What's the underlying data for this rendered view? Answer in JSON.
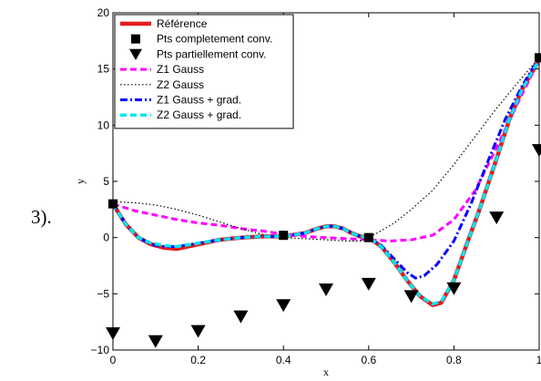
{
  "prefix": "3).",
  "chart_data": {
    "type": "line",
    "title": "",
    "xlabel": "x",
    "ylabel": "y",
    "xlim": [
      0,
      1
    ],
    "ylim": [
      -10,
      20
    ],
    "xticks": [
      "0",
      "0.2",
      "0.4",
      "0.6",
      "0.8",
      "1"
    ],
    "yticks": [
      "−10",
      "−5",
      "0",
      "5",
      "10",
      "15",
      "20"
    ],
    "xtick_values": [
      0,
      0.2,
      0.4,
      0.6,
      0.8,
      1
    ],
    "ytick_values": [
      -10,
      -5,
      0,
      5,
      10,
      15,
      20
    ],
    "grid": false,
    "legend_position": "top-left",
    "series": [
      {
        "name": "Référence",
        "style": "line-thick",
        "color": "#e41a1c",
        "x": [
          0,
          0.03,
          0.06,
          0.09,
          0.12,
          0.15,
          0.2,
          0.25,
          0.3,
          0.35,
          0.4,
          0.45,
          0.48,
          0.5,
          0.52,
          0.54,
          0.56,
          0.58,
          0.6,
          0.63,
          0.66,
          0.69,
          0.72,
          0.75,
          0.77,
          0.8,
          0.83,
          0.86,
          0.9,
          0.93,
          0.96,
          1
        ],
        "y": [
          3,
          1.2,
          0,
          -0.6,
          -0.9,
          -1.0,
          -0.6,
          -0.2,
          0,
          0.1,
          0.1,
          0.4,
          0.8,
          1.0,
          1.0,
          0.8,
          0.4,
          0.1,
          0,
          -0.8,
          -2.2,
          -3.8,
          -5.2,
          -6.0,
          -5.8,
          -3.8,
          -0.6,
          2.5,
          7,
          10.5,
          13.2,
          15.8
        ]
      },
      {
        "name": "Pts completement conv.",
        "style": "square-marker",
        "color": "#000000",
        "x": [
          0,
          0.4,
          0.6,
          1
        ],
        "y": [
          3,
          0.2,
          0,
          16
        ]
      },
      {
        "name": "Pts partiellement conv.",
        "style": "triangle-marker",
        "color": "#000000",
        "x": [
          0,
          0.1,
          0.2,
          0.3,
          0.4,
          0.5,
          0.6,
          0.7,
          0.8,
          0.9,
          1
        ],
        "y": [
          -8.5,
          -9.2,
          -8.3,
          -7,
          -6,
          -4.6,
          -4.1,
          -5.2,
          -4.5,
          1.8,
          7.8
        ]
      },
      {
        "name": "Z1 Gauss",
        "style": "dashed",
        "color": "#ff00ff",
        "x": [
          0,
          0.05,
          0.1,
          0.15,
          0.2,
          0.25,
          0.3,
          0.35,
          0.4,
          0.45,
          0.5,
          0.55,
          0.6,
          0.65,
          0.7,
          0.75,
          0.8,
          0.85,
          0.9,
          0.95,
          1
        ],
        "y": [
          3,
          2.4,
          2.0,
          1.6,
          1.3,
          1.1,
          0.8,
          0.6,
          0.3,
          0.1,
          0,
          -0.1,
          -0.2,
          -0.3,
          -0.2,
          0.2,
          1.6,
          4.2,
          8.0,
          12.0,
          15.8
        ]
      },
      {
        "name": "Z2 Gauss",
        "style": "dotted",
        "color": "#000000",
        "x": [
          0,
          0.05,
          0.1,
          0.15,
          0.2,
          0.25,
          0.3,
          0.35,
          0.4,
          0.45,
          0.5,
          0.55,
          0.58,
          0.62,
          0.66,
          0.7,
          0.75,
          0.8,
          0.85,
          0.9,
          0.95,
          1
        ],
        "y": [
          3.2,
          3.1,
          2.9,
          2.5,
          2.0,
          1.4,
          0.8,
          0.3,
          0,
          -0.1,
          -0.2,
          -0.3,
          -0.3,
          0.4,
          1.3,
          2.5,
          4.2,
          6.5,
          9.0,
          11.5,
          13.8,
          16.0
        ]
      },
      {
        "name": "Z1 Gauss + grad.",
        "style": "dashdot",
        "color": "#0000ff",
        "x": [
          0,
          0.03,
          0.06,
          0.09,
          0.12,
          0.15,
          0.2,
          0.25,
          0.3,
          0.35,
          0.4,
          0.45,
          0.48,
          0.5,
          0.52,
          0.54,
          0.56,
          0.58,
          0.6,
          0.63,
          0.66,
          0.69,
          0.71,
          0.73,
          0.76,
          0.8,
          0.84,
          0.88,
          0.92,
          0.96,
          1
        ],
        "y": [
          3,
          1.2,
          0,
          -0.6,
          -0.8,
          -0.8,
          -0.5,
          -0.2,
          0,
          0.1,
          0.1,
          0.4,
          0.8,
          1.0,
          1.0,
          0.8,
          0.4,
          0.1,
          0,
          -0.7,
          -1.9,
          -3.1,
          -3.6,
          -3.4,
          -2.4,
          -0.3,
          3.0,
          6.8,
          10.5,
          13.5,
          16.0
        ]
      },
      {
        "name": "Z2 Gauss + grad.",
        "style": "dashed-thick",
        "color": "#00e5ee",
        "x": [
          0,
          0.03,
          0.06,
          0.09,
          0.12,
          0.15,
          0.2,
          0.25,
          0.3,
          0.35,
          0.4,
          0.45,
          0.48,
          0.5,
          0.52,
          0.54,
          0.56,
          0.58,
          0.6,
          0.63,
          0.66,
          0.69,
          0.72,
          0.75,
          0.77,
          0.8,
          0.83,
          0.86,
          0.9,
          0.93,
          0.96,
          1
        ],
        "y": [
          3,
          1.2,
          0,
          -0.5,
          -0.7,
          -0.8,
          -0.5,
          -0.2,
          0,
          0.1,
          0.1,
          0.4,
          0.8,
          1.0,
          1.0,
          0.8,
          0.4,
          0.1,
          0,
          -0.8,
          -2.2,
          -3.8,
          -5.2,
          -5.9,
          -5.7,
          -3.8,
          -0.6,
          2.5,
          7,
          10.5,
          13.2,
          15.8
        ]
      }
    ]
  }
}
